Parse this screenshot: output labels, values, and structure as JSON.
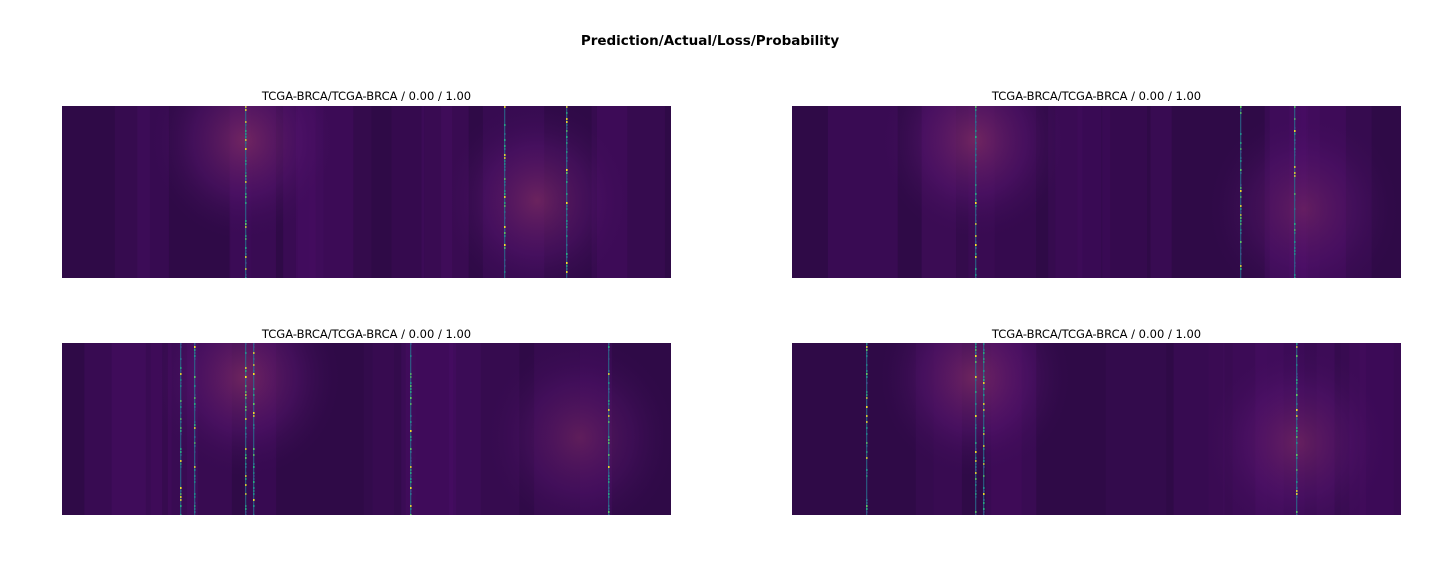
{
  "figure": {
    "suptitle": "Prediction/Actual/Loss/Probability"
  },
  "chart_data": [
    {
      "type": "heatmap",
      "title": "TCGA-BRCA/TCGA-BRCA / 0.00 / 1.00",
      "colormap": "viridis",
      "grid": false,
      "axes_visible": false,
      "attention_overlay": {
        "colormap": "magma",
        "hotspots": [
          {
            "x": 0.3,
            "y": 0.2,
            "strength": 1.0
          },
          {
            "x": 0.78,
            "y": 0.55,
            "strength": 0.9
          }
        ]
      },
      "sparse_columns": [
        0.3,
        0.725,
        0.828
      ]
    },
    {
      "type": "heatmap",
      "title": "TCGA-BRCA/TCGA-BRCA / 0.00 / 1.00",
      "colormap": "viridis",
      "grid": false,
      "axes_visible": false,
      "attention_overlay": {
        "colormap": "magma",
        "hotspots": [
          {
            "x": 0.3,
            "y": 0.2,
            "strength": 1.0
          },
          {
            "x": 0.84,
            "y": 0.6,
            "strength": 0.7
          }
        ]
      },
      "sparse_columns": [
        0.3,
        0.735,
        0.825
      ]
    },
    {
      "type": "heatmap",
      "title": "TCGA-BRCA/TCGA-BRCA / 0.00 / 1.00",
      "colormap": "viridis",
      "grid": false,
      "axes_visible": false,
      "attention_overlay": {
        "colormap": "magma",
        "hotspots": [
          {
            "x": 0.3,
            "y": 0.2,
            "strength": 1.0
          },
          {
            "x": 0.85,
            "y": 0.55,
            "strength": 0.7
          }
        ]
      },
      "sparse_columns": [
        0.193,
        0.217,
        0.3,
        0.313,
        0.572,
        0.896
      ]
    },
    {
      "type": "heatmap",
      "title": "TCGA-BRCA/TCGA-BRCA / 0.00 / 1.00",
      "colormap": "viridis",
      "grid": false,
      "axes_visible": false,
      "attention_overlay": {
        "colormap": "magma",
        "hotspots": [
          {
            "x": 0.3,
            "y": 0.2,
            "strength": 1.0
          },
          {
            "x": 0.83,
            "y": 0.58,
            "strength": 0.8
          }
        ]
      },
      "sparse_columns": [
        0.121,
        0.3,
        0.313,
        0.828
      ]
    }
  ]
}
